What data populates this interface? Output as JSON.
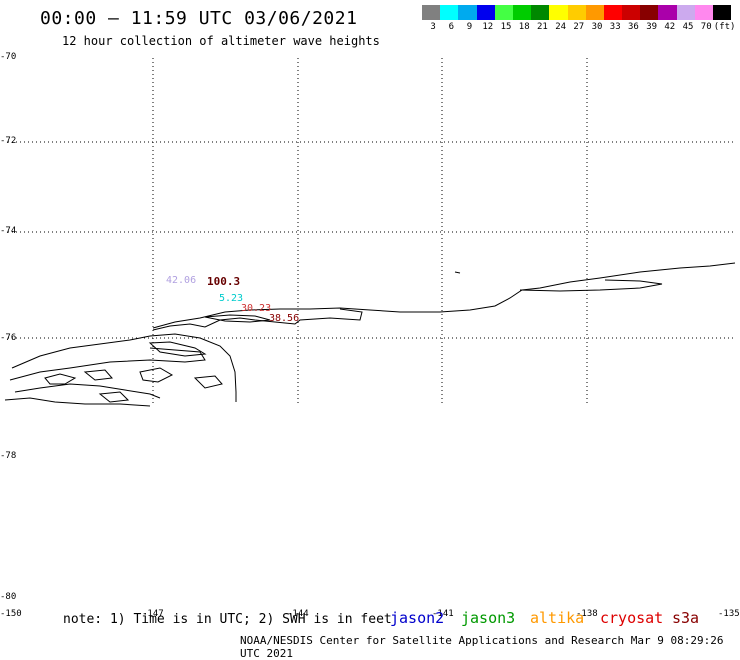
{
  "header": {
    "title": "00:00 – 11:59 UTC 03/06/2021",
    "subtitle": "12 hour collection of altimeter wave heights"
  },
  "colorbar": {
    "colors": [
      "#808080",
      "#00ffff",
      "#00aaee",
      "#0000ee",
      "#44ff44",
      "#00cc00",
      "#008800",
      "#ffff00",
      "#ffcc00",
      "#ff9900",
      "#ff0000",
      "#cc0000",
      "#880000",
      "#aa00aa",
      "#ccaaee",
      "#ff88ee",
      "#000000"
    ],
    "labels": [
      "3",
      "6",
      "9",
      "12",
      "15",
      "18",
      "21",
      "24",
      "27",
      "30",
      "33",
      "36",
      "39",
      "42",
      "45",
      "70",
      "(ft)"
    ]
  },
  "axes": {
    "y_ticks": [
      "-70",
      "-72",
      "-74",
      "-76",
      "-78",
      "-78",
      "-80"
    ],
    "x_ticks": [
      "-150",
      "-147",
      "-144",
      "-141",
      "-138",
      "-135"
    ]
  },
  "wave_values": [
    {
      "text": "42.06",
      "color": "#b0a0e0"
    },
    {
      "text": "100.3",
      "color": "#660000"
    },
    {
      "text": "5.23",
      "color": "#00cccc"
    },
    {
      "text": "30.23",
      "color": "#cc3333"
    },
    {
      "text": "38.56",
      "color": "#880000"
    }
  ],
  "footer": {
    "note": "note: 1) Time is in UTC; 2) SWH is in feet",
    "satellites": [
      {
        "name": "jason2",
        "color": "#0000cc"
      },
      {
        "name": "jason3",
        "color": "#009900"
      },
      {
        "name": "altika",
        "color": "#ff9900"
      },
      {
        "name": "cryosat",
        "color": "#dd0000"
      },
      {
        "name": "s3a",
        "color": "#880000"
      }
    ],
    "credit": "NOAA/NESDIS Center for Satellite Applications and Research   Mar  9 08:29:26 UTC 2021"
  }
}
